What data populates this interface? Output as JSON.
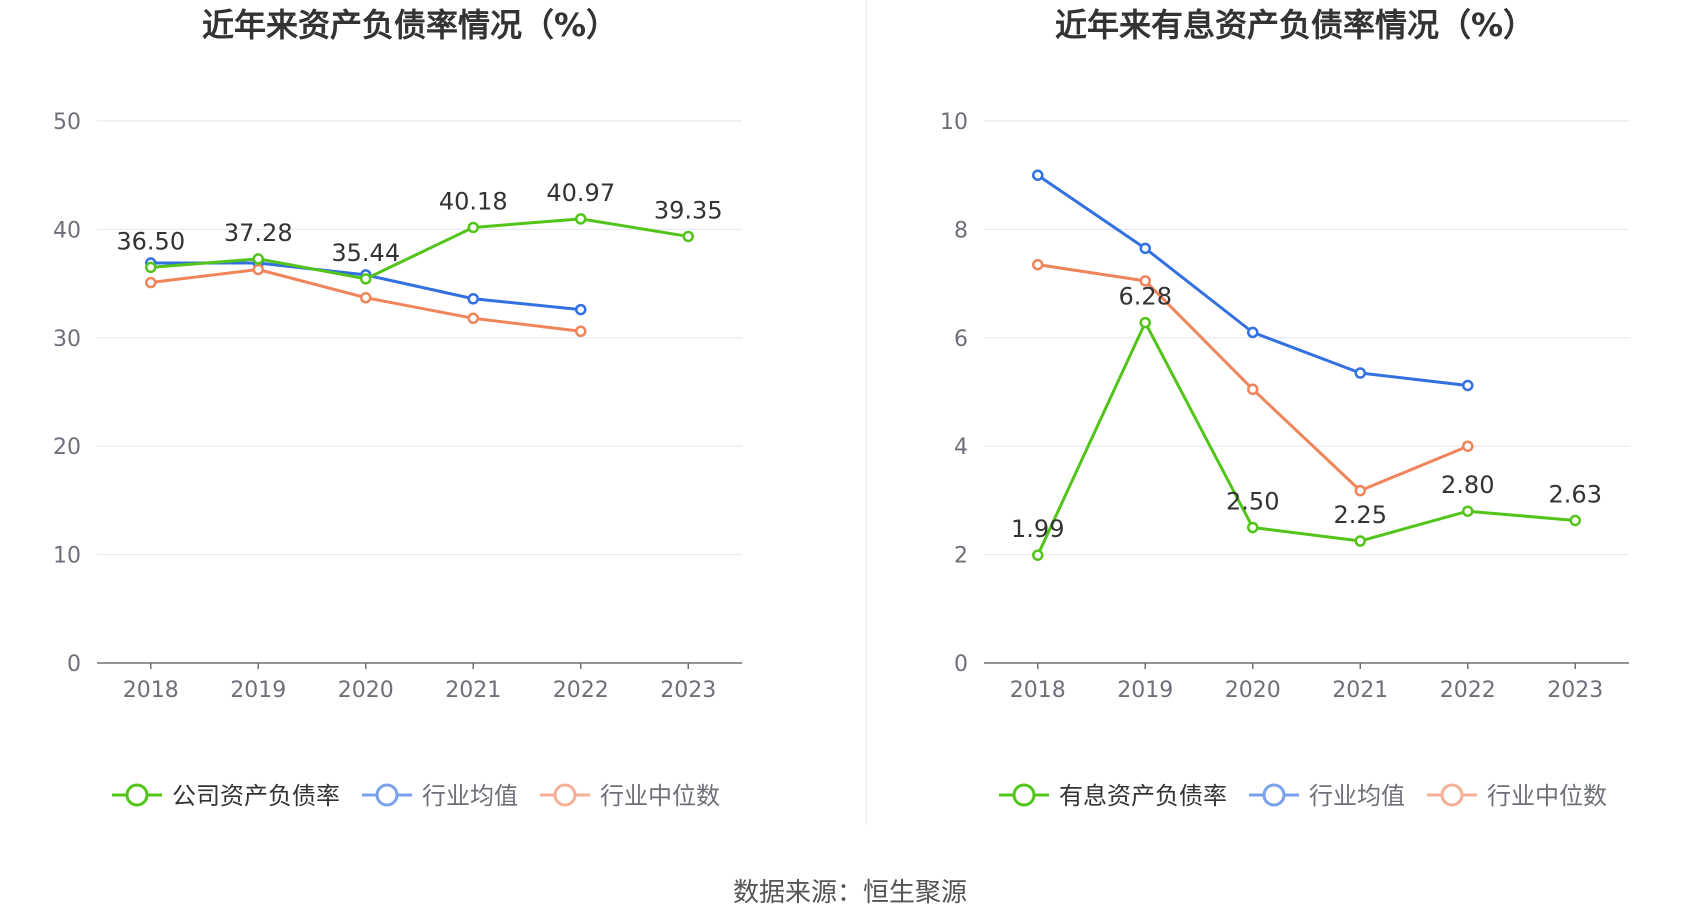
{
  "chart_data": [
    {
      "type": "line",
      "title": "近年来资产负债率情况（%）",
      "xlabel": "",
      "ylabel": "",
      "categories": [
        "2018",
        "2019",
        "2020",
        "2021",
        "2022",
        "2023"
      ],
      "ylim": [
        0,
        50
      ],
      "yticks": [
        0,
        10,
        20,
        30,
        40,
        50
      ],
      "series": [
        {
          "name": "公司资产负债率",
          "color": "#52c41a",
          "labeled": true,
          "values": [
            36.5,
            37.28,
            35.44,
            40.18,
            40.97,
            39.35
          ],
          "labels": [
            "36.50",
            "37.28",
            "35.44",
            "40.18",
            "40.97",
            "39.35"
          ]
        },
        {
          "name": "行业均值",
          "color": "#3370e0",
          "labeled": false,
          "values": [
            36.9,
            36.9,
            35.8,
            33.6,
            32.6,
            null
          ]
        },
        {
          "name": "行业中位数",
          "color": "#f0845a",
          "labeled": false,
          "values": [
            35.1,
            36.3,
            33.7,
            31.8,
            30.6,
            null
          ]
        }
      ]
    },
    {
      "type": "line",
      "title": "近年来有息资产负债率情况（%）",
      "xlabel": "",
      "ylabel": "",
      "categories": [
        "2018",
        "2019",
        "2020",
        "2021",
        "2022",
        "2023"
      ],
      "ylim": [
        0,
        10
      ],
      "yticks": [
        0,
        2,
        4,
        6,
        8,
        10
      ],
      "series": [
        {
          "name": "有息资产负债率",
          "color": "#52c41a",
          "labeled": true,
          "values": [
            1.99,
            6.28,
            2.5,
            2.25,
            2.8,
            2.63
          ],
          "labels": [
            "1.99",
            "6.28",
            "2.50",
            "2.25",
            "2.80",
            "2.63"
          ]
        },
        {
          "name": "行业均值",
          "color": "#3370e0",
          "labeled": false,
          "values": [
            9.0,
            7.65,
            6.1,
            5.35,
            5.12,
            null
          ]
        },
        {
          "name": "行业中位数",
          "color": "#f0845a",
          "labeled": false,
          "values": [
            7.35,
            7.05,
            5.05,
            3.18,
            4.0,
            null
          ]
        }
      ]
    }
  ],
  "source_label": "数据来源：恒生聚源"
}
